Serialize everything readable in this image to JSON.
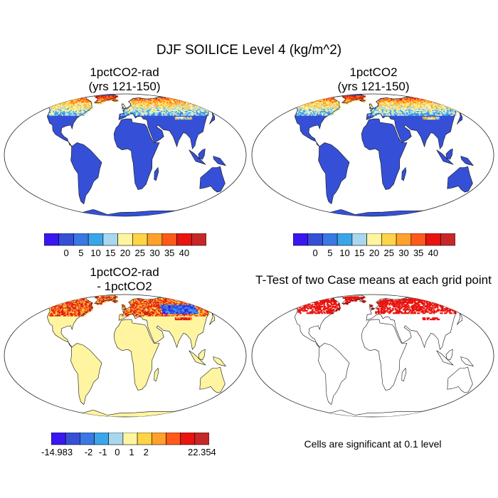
{
  "figure": {
    "title": "DJF SOILICE Level 4 (kg/m^2)",
    "panels": [
      {
        "title_line1": "1pctCO2-rad",
        "title_line2": "(yrs 121-150)"
      },
      {
        "title_line1": "1pctCO2",
        "title_line2": "(yrs 121-150)"
      },
      {
        "title_line1": "1pctCO2-rad",
        "title_line2": "- 1pctCO2"
      },
      {
        "title_line1": "T-Test of two Case means at each grid point",
        "title_line2": ""
      }
    ],
    "note": "Cells are significant at 0.1 level"
  },
  "colorbars": {
    "abs": {
      "colors": [
        "#3a17f0",
        "#3550d6",
        "#3a78e3",
        "#3aa6e9",
        "#a9d7f0",
        "#fff5a0",
        "#ffd447",
        "#ffa12c",
        "#ff5a1a",
        "#e8140f",
        "#c62828"
      ],
      "labels": [
        "0",
        "5",
        "10",
        "15",
        "20",
        "25",
        "30",
        "35",
        "40"
      ]
    },
    "diff": {
      "colors": [
        "#3a17f0",
        "#3550d6",
        "#3a78e3",
        "#3aa6e9",
        "#a9d7f0",
        "#fff5a0",
        "#ffd447",
        "#ffa12c",
        "#ff5a1a",
        "#e8140f",
        "#c62828"
      ],
      "labels": [
        "-14.983",
        "-2",
        "-1",
        "0",
        "1",
        "2",
        "22.354"
      ]
    }
  },
  "map_colors": {
    "ocean": "#ffffff",
    "land_low": "#3550d6",
    "land_diff": "#fff5a0",
    "significant": "#e8140f"
  }
}
